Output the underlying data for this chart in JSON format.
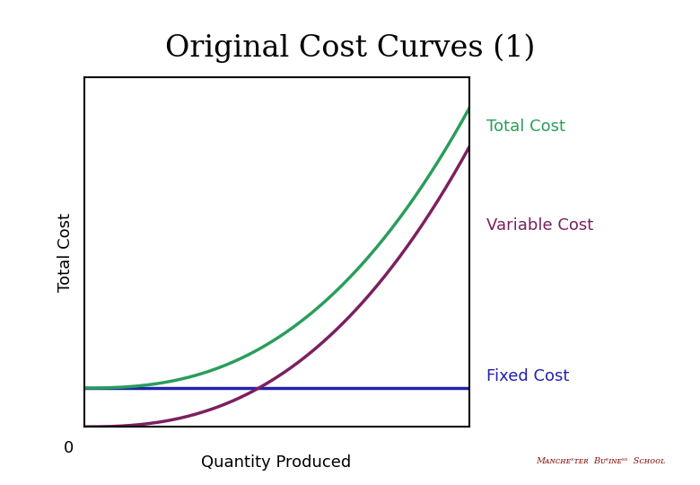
{
  "title": "Original Cost Curves (1)",
  "title_fontsize": 24,
  "ylabel": "Total Cost",
  "xlabel": "Quantity Produced",
  "label_fontsize": 13,
  "zero_label": "0",
  "fixed_cost_label": "Fixed Cost",
  "variable_cost_label": "Variable Cost",
  "total_cost_label": "Total Cost",
  "annotation_fontsize": 13,
  "fixed_cost_color": "#2222aa",
  "variable_cost_color": "#7b2060",
  "total_cost_color": "#2a9d5c",
  "background_color": "#ffffff",
  "fixed_cost_value": 0.1,
  "x_max": 1.0,
  "y_max": 1.0,
  "vc_scale": 0.72,
  "vc_exp": 2.5
}
